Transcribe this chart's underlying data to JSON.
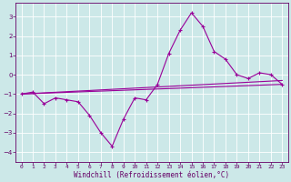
{
  "xlabel": "Windchill (Refroidissement éolien,°C)",
  "background_color": "#cce8e8",
  "grid_color": "#ffffff",
  "line_color": "#990099",
  "xlim": [
    -0.5,
    23.5
  ],
  "ylim": [
    -4.5,
    3.7
  ],
  "yticks": [
    -4,
    -3,
    -2,
    -1,
    0,
    1,
    2,
    3
  ],
  "xticks": [
    0,
    1,
    2,
    3,
    4,
    5,
    6,
    7,
    8,
    9,
    10,
    11,
    12,
    13,
    14,
    15,
    16,
    17,
    18,
    19,
    20,
    21,
    22,
    23
  ],
  "series1": {
    "x": [
      0,
      1,
      2,
      3,
      4,
      5,
      6,
      7,
      8,
      9,
      10,
      11,
      12,
      13,
      14,
      15,
      16,
      17,
      18,
      19,
      20,
      21,
      22,
      23
    ],
    "y": [
      -1.0,
      -0.9,
      -1.5,
      -1.2,
      -1.3,
      -1.4,
      -2.1,
      -3.0,
      -3.7,
      -2.3,
      -1.2,
      -1.3,
      -0.5,
      1.1,
      2.3,
      3.2,
      2.5,
      1.2,
      0.8,
      0.0,
      -0.2,
      0.1,
      0.0,
      -0.5
    ]
  },
  "series2": {
    "x": [
      0,
      23
    ],
    "y": [
      -1.0,
      -0.5
    ]
  },
  "series3": {
    "x": [
      0,
      23
    ],
    "y": [
      -1.0,
      -0.3
    ]
  },
  "tick_fontsize": 4.5,
  "xlabel_fontsize": 5.5
}
